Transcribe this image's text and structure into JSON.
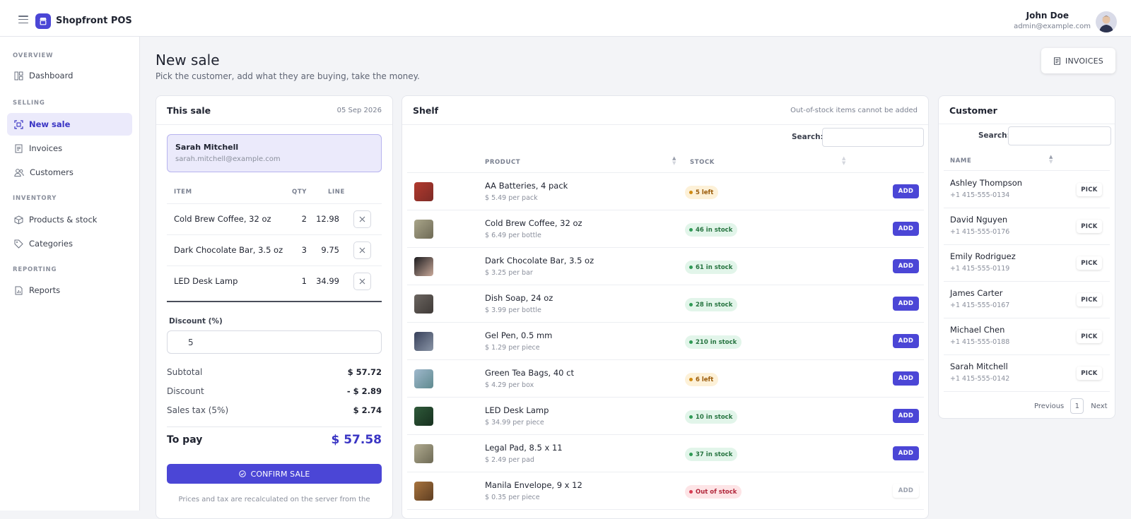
{
  "app": {
    "name": "Shopfront POS"
  },
  "user": {
    "name": "John Doe",
    "email": "admin@example.com"
  },
  "sidebar": {
    "sections": [
      {
        "title": "OVERVIEW"
      },
      {
        "title": "SELLING"
      },
      {
        "title": "INVENTORY"
      },
      {
        "title": "REPORTING"
      }
    ],
    "items": [
      {
        "label": "Dashboard",
        "icon": "dashboard-icon"
      },
      {
        "label": "New sale",
        "icon": "scan-icon",
        "active": true
      },
      {
        "label": "Invoices",
        "icon": "invoice-icon"
      },
      {
        "label": "Customers",
        "icon": "users-icon"
      },
      {
        "label": "Products & stock",
        "icon": "box-icon"
      },
      {
        "label": "Categories",
        "icon": "tag-icon"
      },
      {
        "label": "Reports",
        "icon": "report-icon"
      }
    ]
  },
  "page": {
    "title": "New sale",
    "subtitle": "Pick the customer, add what they are buying, take the money.",
    "invoices_button": "INVOICES"
  },
  "sale": {
    "title": "This sale",
    "date": "05 Sep 2026",
    "customer": {
      "name": "Sarah Mitchell",
      "email": "sarah.mitchell@example.com"
    },
    "columns": {
      "item": "ITEM",
      "qty": "QTY",
      "line": "LINE"
    },
    "lines": [
      {
        "item": "Cold Brew Coffee, 32 oz",
        "qty": "2",
        "line": "12.98"
      },
      {
        "item": "Dark Chocolate Bar, 3.5 oz",
        "qty": "3",
        "line": "9.75"
      },
      {
        "item": "LED Desk Lamp",
        "qty": "1",
        "line": "34.99"
      }
    ],
    "discount_label": "Discount (%)",
    "discount_value": "5",
    "subtotal_label": "Subtotal",
    "subtotal": "$ 57.72",
    "discount_row_label": "Discount",
    "discount_amount": "- $ 2.89",
    "tax_label": "Sales tax (5%)",
    "tax": "$ 2.74",
    "to_pay_label": "To pay",
    "to_pay": "$ 57.58",
    "confirm_label": "CONFIRM SALE",
    "note": "Prices and tax are recalculated on the server from the"
  },
  "shelf": {
    "title": "Shelf",
    "note": "Out-of-stock items cannot be added",
    "search_label": "Search:",
    "columns": {
      "product": "PRODUCT",
      "stock": "STOCK"
    },
    "add_label": "ADD",
    "products": [
      {
        "name": "AA Batteries, 4 pack",
        "price": "$ 5.49 per pack",
        "stock": "5 left",
        "status": "low",
        "thumb": [
          "#b23a2e",
          "#7d2b26"
        ]
      },
      {
        "name": "Cold Brew Coffee, 32 oz",
        "price": "$ 6.49 per bottle",
        "stock": "46 in stock",
        "status": "ok",
        "thumb": [
          "#a9a58a",
          "#6e6a55"
        ]
      },
      {
        "name": "Dark Chocolate Bar, 3.5 oz",
        "price": "$ 3.25 per bar",
        "stock": "61 in stock",
        "status": "ok",
        "thumb": [
          "#1c1b1e",
          "#c9a99a"
        ]
      },
      {
        "name": "Dish Soap, 24 oz",
        "price": "$ 3.99 per bottle",
        "stock": "28 in stock",
        "status": "ok",
        "thumb": [
          "#6b6560",
          "#3f3a37"
        ]
      },
      {
        "name": "Gel Pen, 0.5 mm",
        "price": "$ 1.29 per piece",
        "stock": "210 in stock",
        "status": "ok",
        "thumb": [
          "#37405a",
          "#8a95a6"
        ]
      },
      {
        "name": "Green Tea Bags, 40 ct",
        "price": "$ 4.29 per box",
        "stock": "6 left",
        "status": "low",
        "thumb": [
          "#9fb8cc",
          "#5f8a8f"
        ]
      },
      {
        "name": "LED Desk Lamp",
        "price": "$ 34.99 per piece",
        "stock": "10 in stock",
        "status": "ok",
        "thumb": [
          "#2f5a3a",
          "#17301f"
        ]
      },
      {
        "name": "Legal Pad, 8.5 x 11",
        "price": "$ 2.49 per pad",
        "stock": "37 in stock",
        "status": "ok",
        "thumb": [
          "#b0ab90",
          "#6e6a55"
        ]
      },
      {
        "name": "Manila Envelope, 9 x 12",
        "price": "$ 0.35 per piece",
        "stock": "Out of stock",
        "status": "out",
        "thumb": [
          "#a8743e",
          "#5e3e22"
        ]
      }
    ]
  },
  "customers": {
    "title": "Customer",
    "search_label": "Search:",
    "column_name": "NAME",
    "pick_label": "PICK",
    "list": [
      {
        "name": "Ashley Thompson",
        "phone": "+1 415-555-0134"
      },
      {
        "name": "David Nguyen",
        "phone": "+1 415-555-0176"
      },
      {
        "name": "Emily Rodriguez",
        "phone": "+1 415-555-0119"
      },
      {
        "name": "James Carter",
        "phone": "+1 415-555-0167"
      },
      {
        "name": "Michael Chen",
        "phone": "+1 415-555-0188"
      },
      {
        "name": "Sarah Mitchell",
        "phone": "+1 415-555-0142"
      }
    ],
    "pager": {
      "previous": "Previous",
      "current": "1",
      "next": "Next"
    }
  },
  "colors": {
    "accent": "#4b46d6",
    "accent_soft": "#ebeafb"
  }
}
